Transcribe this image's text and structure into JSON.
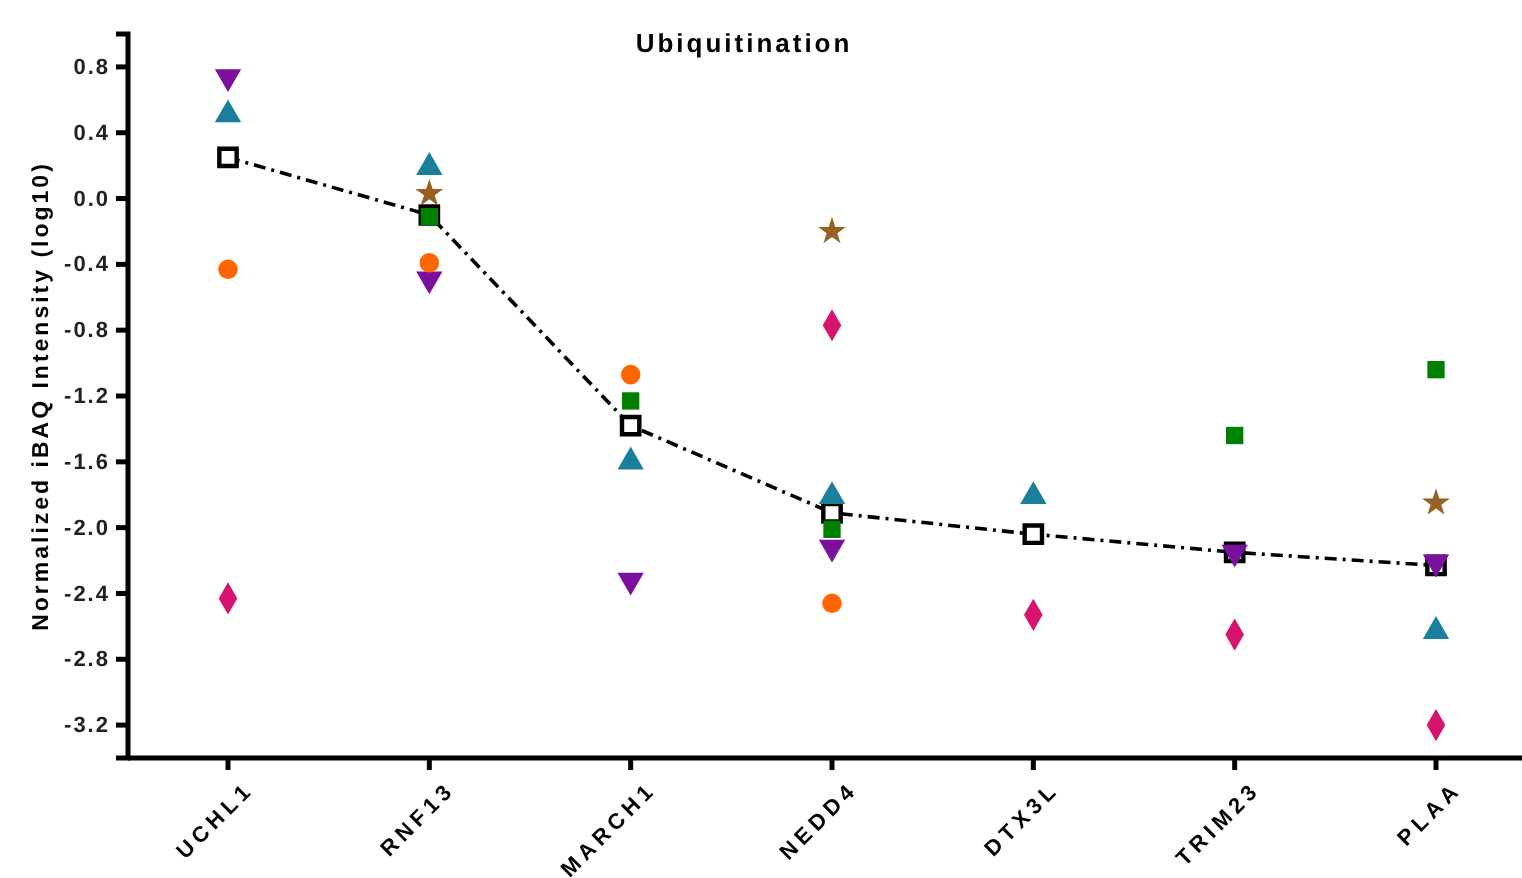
{
  "chart_data": {
    "type": "scatter",
    "title": "Ubiquitination",
    "ylabel": "Normalized iBAQ Intensity (log10)",
    "categories": [
      "UCHL1",
      "RNF13",
      "MARCH1",
      "NEDD4",
      "DTX3L",
      "TRIM23",
      "PLAA"
    ],
    "ylim": [
      -3.4,
      1.0
    ],
    "yticks": [
      -3.2,
      -2.8,
      -2.4,
      {
        "value": -2.0,
        "label": "-2.0"
      },
      -1.6,
      -1.2,
      -0.8,
      -0.4,
      {
        "value": 0,
        "label": "0.0"
      },
      0.4,
      0.8
    ],
    "grid": false,
    "series": [
      {
        "type": "line",
        "color": "#000000",
        "marker": "square",
        "line_style": "dashdot",
        "values": [
          0.25,
          -0.1,
          -1.38,
          -1.91,
          -2.04,
          -2.15,
          -2.23
        ]
      },
      {
        "color": "#7b0f9e",
        "marker": "triangle-down",
        "values": [
          0.74,
          -0.49,
          -2.32,
          -2.12,
          null,
          -2.15,
          -2.21
        ]
      },
      {
        "color": "#1a7f9a",
        "marker": "triangle",
        "values": [
          0.51,
          0.19,
          -1.6,
          -1.81,
          -1.81,
          null,
          -2.63
        ]
      },
      {
        "color": "#ff6600",
        "marker": "circle",
        "values": [
          -0.43,
          -0.39,
          -1.07,
          -2.46,
          null,
          null,
          null
        ]
      },
      {
        "color": "#008000",
        "marker": "square",
        "values": [
          null,
          -0.11,
          -1.23,
          -2.01,
          null,
          -1.44,
          -1.04
        ]
      },
      {
        "color": "#9a6020",
        "marker": "star",
        "values": [
          null,
          0.03,
          null,
          -0.2,
          null,
          null,
          -1.85
        ]
      },
      {
        "color": "#d6136f",
        "marker": "diamond",
        "values": [
          -2.43,
          null,
          null,
          -0.77,
          -2.53,
          -2.65,
          -3.2
        ]
      }
    ]
  }
}
